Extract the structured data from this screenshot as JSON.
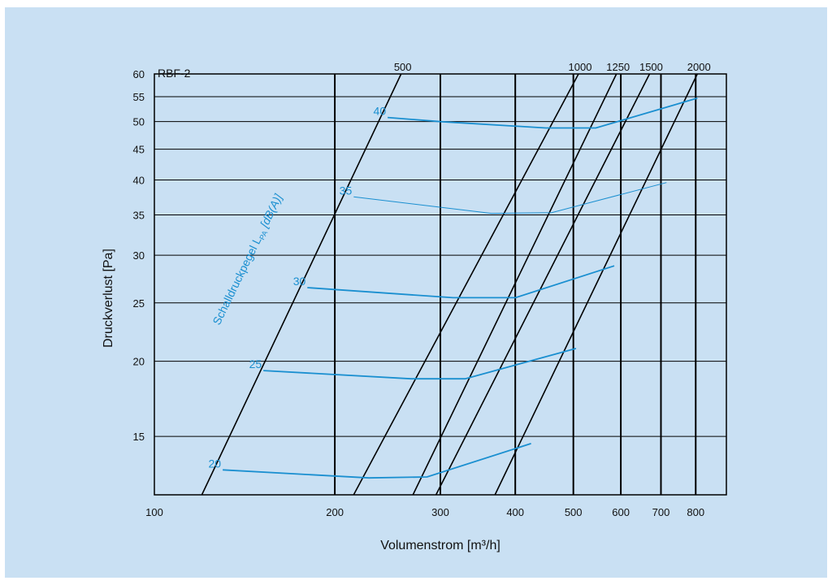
{
  "chart_data": {
    "type": "line",
    "title": "RBF-2",
    "xlabel": "Volumenstrom [m³/h]",
    "ylabel": "Druckverlust [Pa]",
    "x_scale": "log",
    "y_scale": "log",
    "xlim": [
      100,
      900
    ],
    "ylim": [
      12,
      60
    ],
    "grid": true,
    "x_ticks": [
      100,
      200,
      300,
      400,
      500,
      600,
      700,
      800
    ],
    "y_ticks": [
      15,
      20,
      25,
      30,
      35,
      40,
      45,
      50,
      55,
      60
    ],
    "noise_axis_label": "Schalldruckpegel L",
    "noise_axis_label_sub": "PA",
    "noise_axis_label_unit": " [dB(A)]",
    "colors": {
      "noise_curves": "#1a8fd0",
      "lines": "#000000",
      "background": "#c9e0f3"
    },
    "flow_lines": [
      {
        "label": "500",
        "points": [
          [
            120,
            12
          ],
          [
            258,
            60
          ]
        ]
      },
      {
        "label": "1000",
        "points": [
          [
            215,
            12
          ],
          [
            510,
            60
          ]
        ]
      },
      {
        "label": "1250",
        "points": [
          [
            270,
            12
          ],
          [
            590,
            60
          ]
        ]
      },
      {
        "label": "1500",
        "points": [
          [
            295,
            12
          ],
          [
            670,
            60
          ]
        ]
      },
      {
        "label": "2000",
        "points": [
          [
            370,
            12
          ],
          [
            805,
            60
          ]
        ]
      }
    ],
    "series": [
      {
        "name": "20",
        "values": [
          [
            130,
            13.2
          ],
          [
            228,
            12.8
          ],
          [
            285,
            12.85
          ],
          [
            425,
            14.6
          ]
        ]
      },
      {
        "name": "25",
        "values": [
          [
            152,
            19.3
          ],
          [
            268,
            18.7
          ],
          [
            330,
            18.7
          ],
          [
            505,
            21.0
          ]
        ]
      },
      {
        "name": "30",
        "values": [
          [
            180,
            26.5
          ],
          [
            315,
            25.5
          ],
          [
            400,
            25.5
          ],
          [
            585,
            28.8
          ]
        ]
      },
      {
        "name": "35",
        "values": [
          [
            215,
            37.5
          ],
          [
            365,
            35.2
          ],
          [
            460,
            35.3
          ],
          [
            715,
            39.6
          ]
        ]
      },
      {
        "name": "40",
        "values": [
          [
            245,
            50.8
          ],
          [
            300,
            50.0
          ],
          [
            450,
            48.8
          ],
          [
            545,
            48.8
          ],
          [
            805,
            54.7
          ]
        ]
      }
    ]
  }
}
